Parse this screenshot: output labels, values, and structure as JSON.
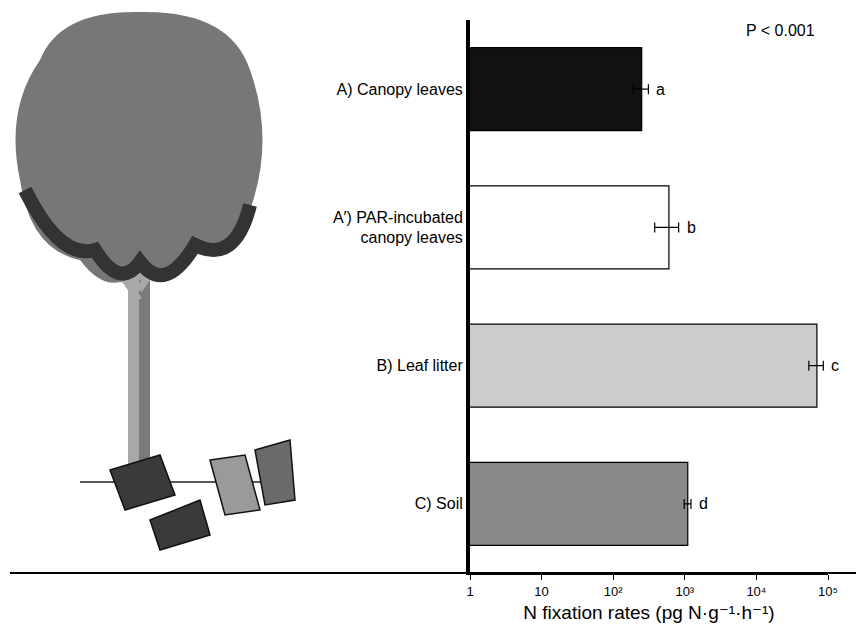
{
  "chart_data": {
    "type": "bar",
    "orientation": "horizontal",
    "categories": [
      "A) Canopy leaves",
      "A′) PAR-incubated canopy leaves",
      "B) Leaf litter",
      "C) Soil"
    ],
    "values": [
      250,
      600,
      70000,
      1100
    ],
    "errors": [
      60,
      220,
      16000,
      120
    ],
    "group_letters": [
      "a",
      "b",
      "c",
      "d"
    ],
    "colors": [
      "#111111",
      "#ffffff",
      "#cccccc",
      "#8a8a8a"
    ],
    "annotations": [
      "P < 0.001"
    ],
    "x_label": "N fixation rates (pg N·g⁻¹·h⁻¹)",
    "log": "x",
    "xlim": [
      1,
      100000
    ],
    "xticks": [
      1,
      10,
      {
        "value": 100,
        "label": "10²"
      },
      {
        "value": 1000,
        "label": "10³"
      },
      {
        "value": 10000,
        "label": "10⁴"
      },
      {
        "value": 100000,
        "label": "10⁵"
      }
    ],
    "grid": false
  }
}
